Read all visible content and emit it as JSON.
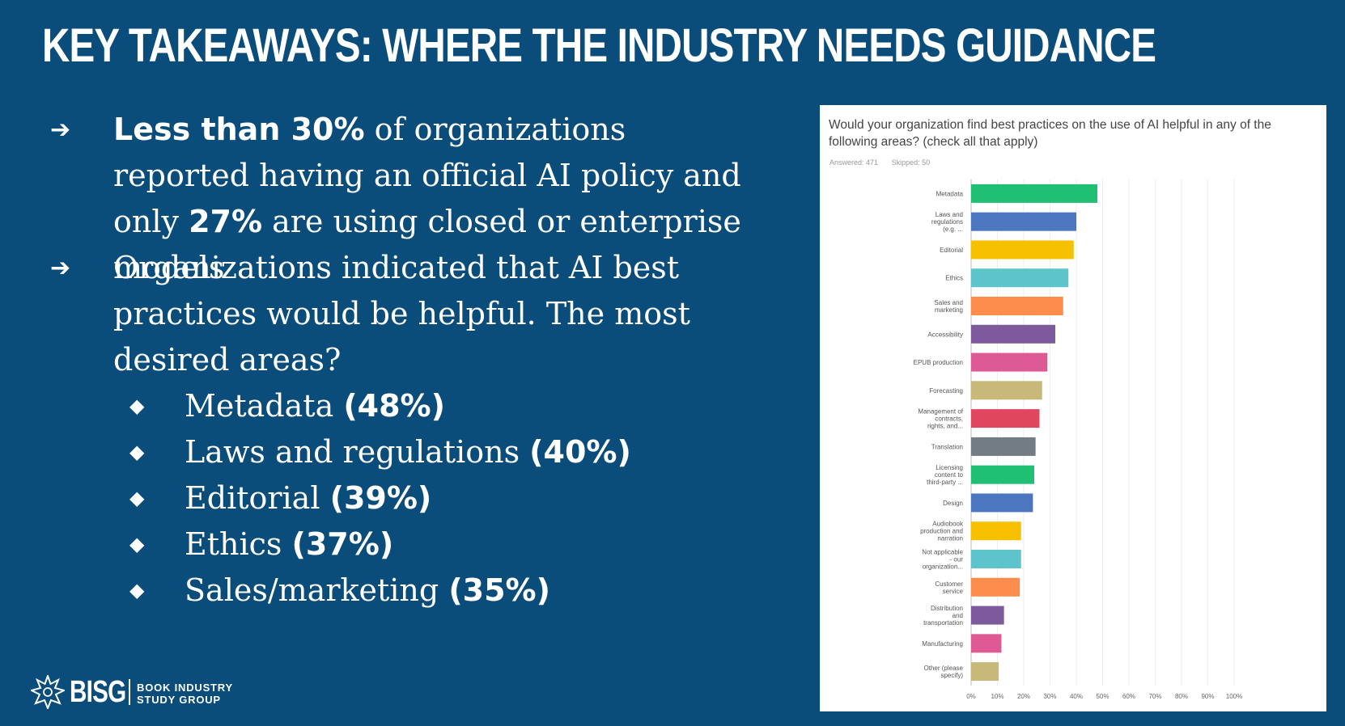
{
  "title": "KEY TAKEAWAYS:  WHERE THE INDUSTRY NEEDS GUIDANCE",
  "bullets": [
    {
      "arrow": "➔",
      "bold1": "Less than 30%",
      "text1": " of organizations reported having an official AI policy and only ",
      "bold2": "27%",
      "text2": " are using closed or enterprise models"
    },
    {
      "arrow": "➔",
      "text": "Organizations indicated that AI best practices would be helpful. The most desired areas?"
    }
  ],
  "subbullets": [
    {
      "label": "Metadata ",
      "value": "(48%)"
    },
    {
      "label": "Laws and regulations ",
      "value": "(40%)"
    },
    {
      "label": "Editorial ",
      "value": "(39%)"
    },
    {
      "label": "Ethics ",
      "value": "(37%)"
    },
    {
      "label": "Sales/marketing ",
      "value": "(35%)"
    }
  ],
  "diamond": "◆",
  "chart_panel": {
    "question": "Would your organization find best practices on the use of AI helpful in any of the following areas? (check all that apply)",
    "answered": "Answered: 471",
    "skipped": "Skipped: 50"
  },
  "chart_data": {
    "type": "bar",
    "orientation": "horizontal",
    "title": "Would your organization find best practices on the use of AI helpful in any of the following areas? (check all that apply)",
    "xlim": [
      0,
      100
    ],
    "x_ticks": [
      "0%",
      "10%",
      "20%",
      "30%",
      "40%",
      "50%",
      "60%",
      "70%",
      "80%",
      "90%",
      "100%"
    ],
    "grid": true,
    "categories": [
      [
        "Metadata"
      ],
      [
        "Laws and",
        "regulations",
        "(e.g. ..."
      ],
      [
        "Editorial"
      ],
      [
        "Ethics"
      ],
      [
        "Sales and",
        "marketing"
      ],
      [
        "Accessibility"
      ],
      [
        "EPUB production"
      ],
      [
        "Forecasting"
      ],
      [
        "Management of",
        "contracts,",
        "rights, and..."
      ],
      [
        "Translation"
      ],
      [
        "Licensing",
        "content to",
        "third-party ..."
      ],
      [
        "Design"
      ],
      [
        "Audiobook",
        "production and",
        "narration"
      ],
      [
        "Not applicable",
        "- our",
        "organization..."
      ],
      [
        "Customer",
        "service"
      ],
      [
        "Distribution",
        "and",
        "transportation"
      ],
      [
        "Manufacturing"
      ],
      [
        "Other (please",
        "specify)"
      ]
    ],
    "values": [
      48,
      40,
      39,
      37,
      35,
      32,
      29,
      27,
      26,
      24.5,
      24,
      23.5,
      19,
      19,
      18.5,
      12.5,
      11.5,
      10.5
    ],
    "colors": [
      "#1fbf74",
      "#4d76c1",
      "#f7c102",
      "#5ec4cc",
      "#fc8d4c",
      "#7c5a9b",
      "#dd5a94",
      "#c8b97a",
      "#e0475f",
      "#737b84",
      "#1fbf74",
      "#4d76c1",
      "#f7c102",
      "#5ec4cc",
      "#fc8d4c",
      "#7c5a9b",
      "#dd5a94",
      "#c8b97a"
    ]
  },
  "logo": {
    "name": "BISG",
    "line1": "BOOK INDUSTRY",
    "line2": "STUDY GROUP"
  }
}
